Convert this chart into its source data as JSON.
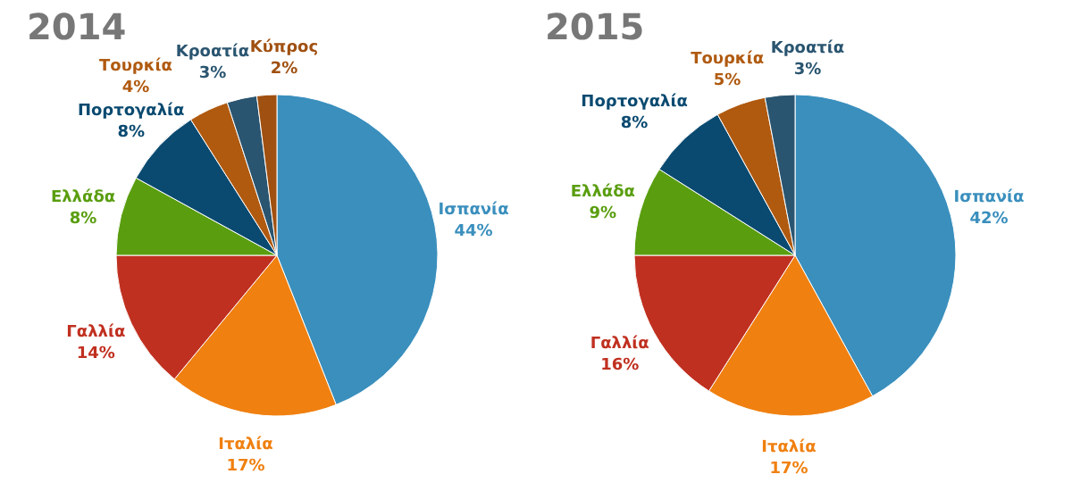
{
  "chart_data": [
    {
      "type": "pie",
      "title": "2014",
      "categories": [
        "Ισπανία",
        "Ιταλία",
        "Γαλλία",
        "Ελλάδα",
        "Πορτογαλία",
        "Τουρκία",
        "Κροατία",
        "Κύπρος"
      ],
      "values": [
        44,
        17,
        14,
        8,
        8,
        4,
        3,
        2
      ],
      "value_labels": [
        "44%",
        "17%",
        "14%",
        "8%",
        "8%",
        "4%",
        "3%",
        "2%"
      ],
      "colors": [
        "#3a8fbd",
        "#f08010",
        "#c03020",
        "#5a9e10",
        "#0a4a70",
        "#b05a10",
        "#2a5570",
        "#a05010"
      ]
    },
    {
      "type": "pie",
      "title": "2015",
      "categories": [
        "Ισπανία",
        "Ιταλία",
        "Γαλλία",
        "Ελλάδα",
        "Πορτογαλία",
        "Τουρκία",
        "Κροατία"
      ],
      "values": [
        42,
        17,
        16,
        9,
        8,
        5,
        3
      ],
      "value_labels": [
        "42%",
        "17%",
        "16%",
        "9%",
        "8%",
        "5%",
        "3%"
      ],
      "colors": [
        "#3a8fbd",
        "#f08010",
        "#c03020",
        "#5a9e10",
        "#0a4a70",
        "#b05a10",
        "#2a5570"
      ]
    }
  ]
}
